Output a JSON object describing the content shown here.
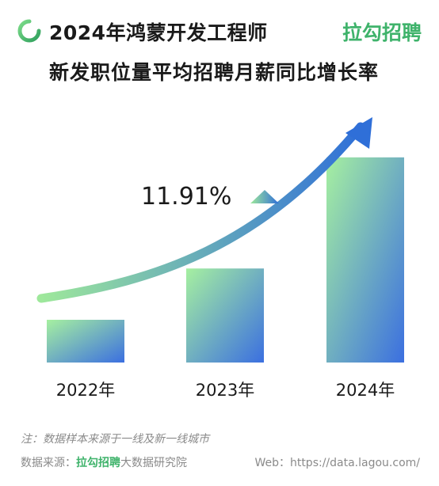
{
  "header": {
    "title_line1": "2024年鸿蒙开发工程师",
    "title_line2": "新发职位量平均招聘月薪同比增长率",
    "brand": "拉勾招聘"
  },
  "colors": {
    "accent_green": "#3fb36b",
    "bar_top": "#a6f0a0",
    "bar_bottom": "#3b6fe0",
    "arrow_start": "#9ee89b",
    "arrow_end": "#2f6fd8"
  },
  "chart_data": {
    "type": "bar",
    "categories": [
      "2022年",
      "2023年",
      "2024年"
    ],
    "values": [
      1.0,
      2.2,
      4.8
    ],
    "ylim": [
      0,
      5
    ],
    "annotation": "11.91%",
    "annotation_marker": "up-triangle-icon",
    "trend_arrow": "up-trend-arrow"
  },
  "footer": {
    "note": "注：数据样本来源于一线及新一线城市",
    "source_prefix": "数据来源：",
    "source_brand": "拉勾招聘",
    "source_suffix": "大数据研究院",
    "web": "Web：https://data.lagou.com/"
  }
}
